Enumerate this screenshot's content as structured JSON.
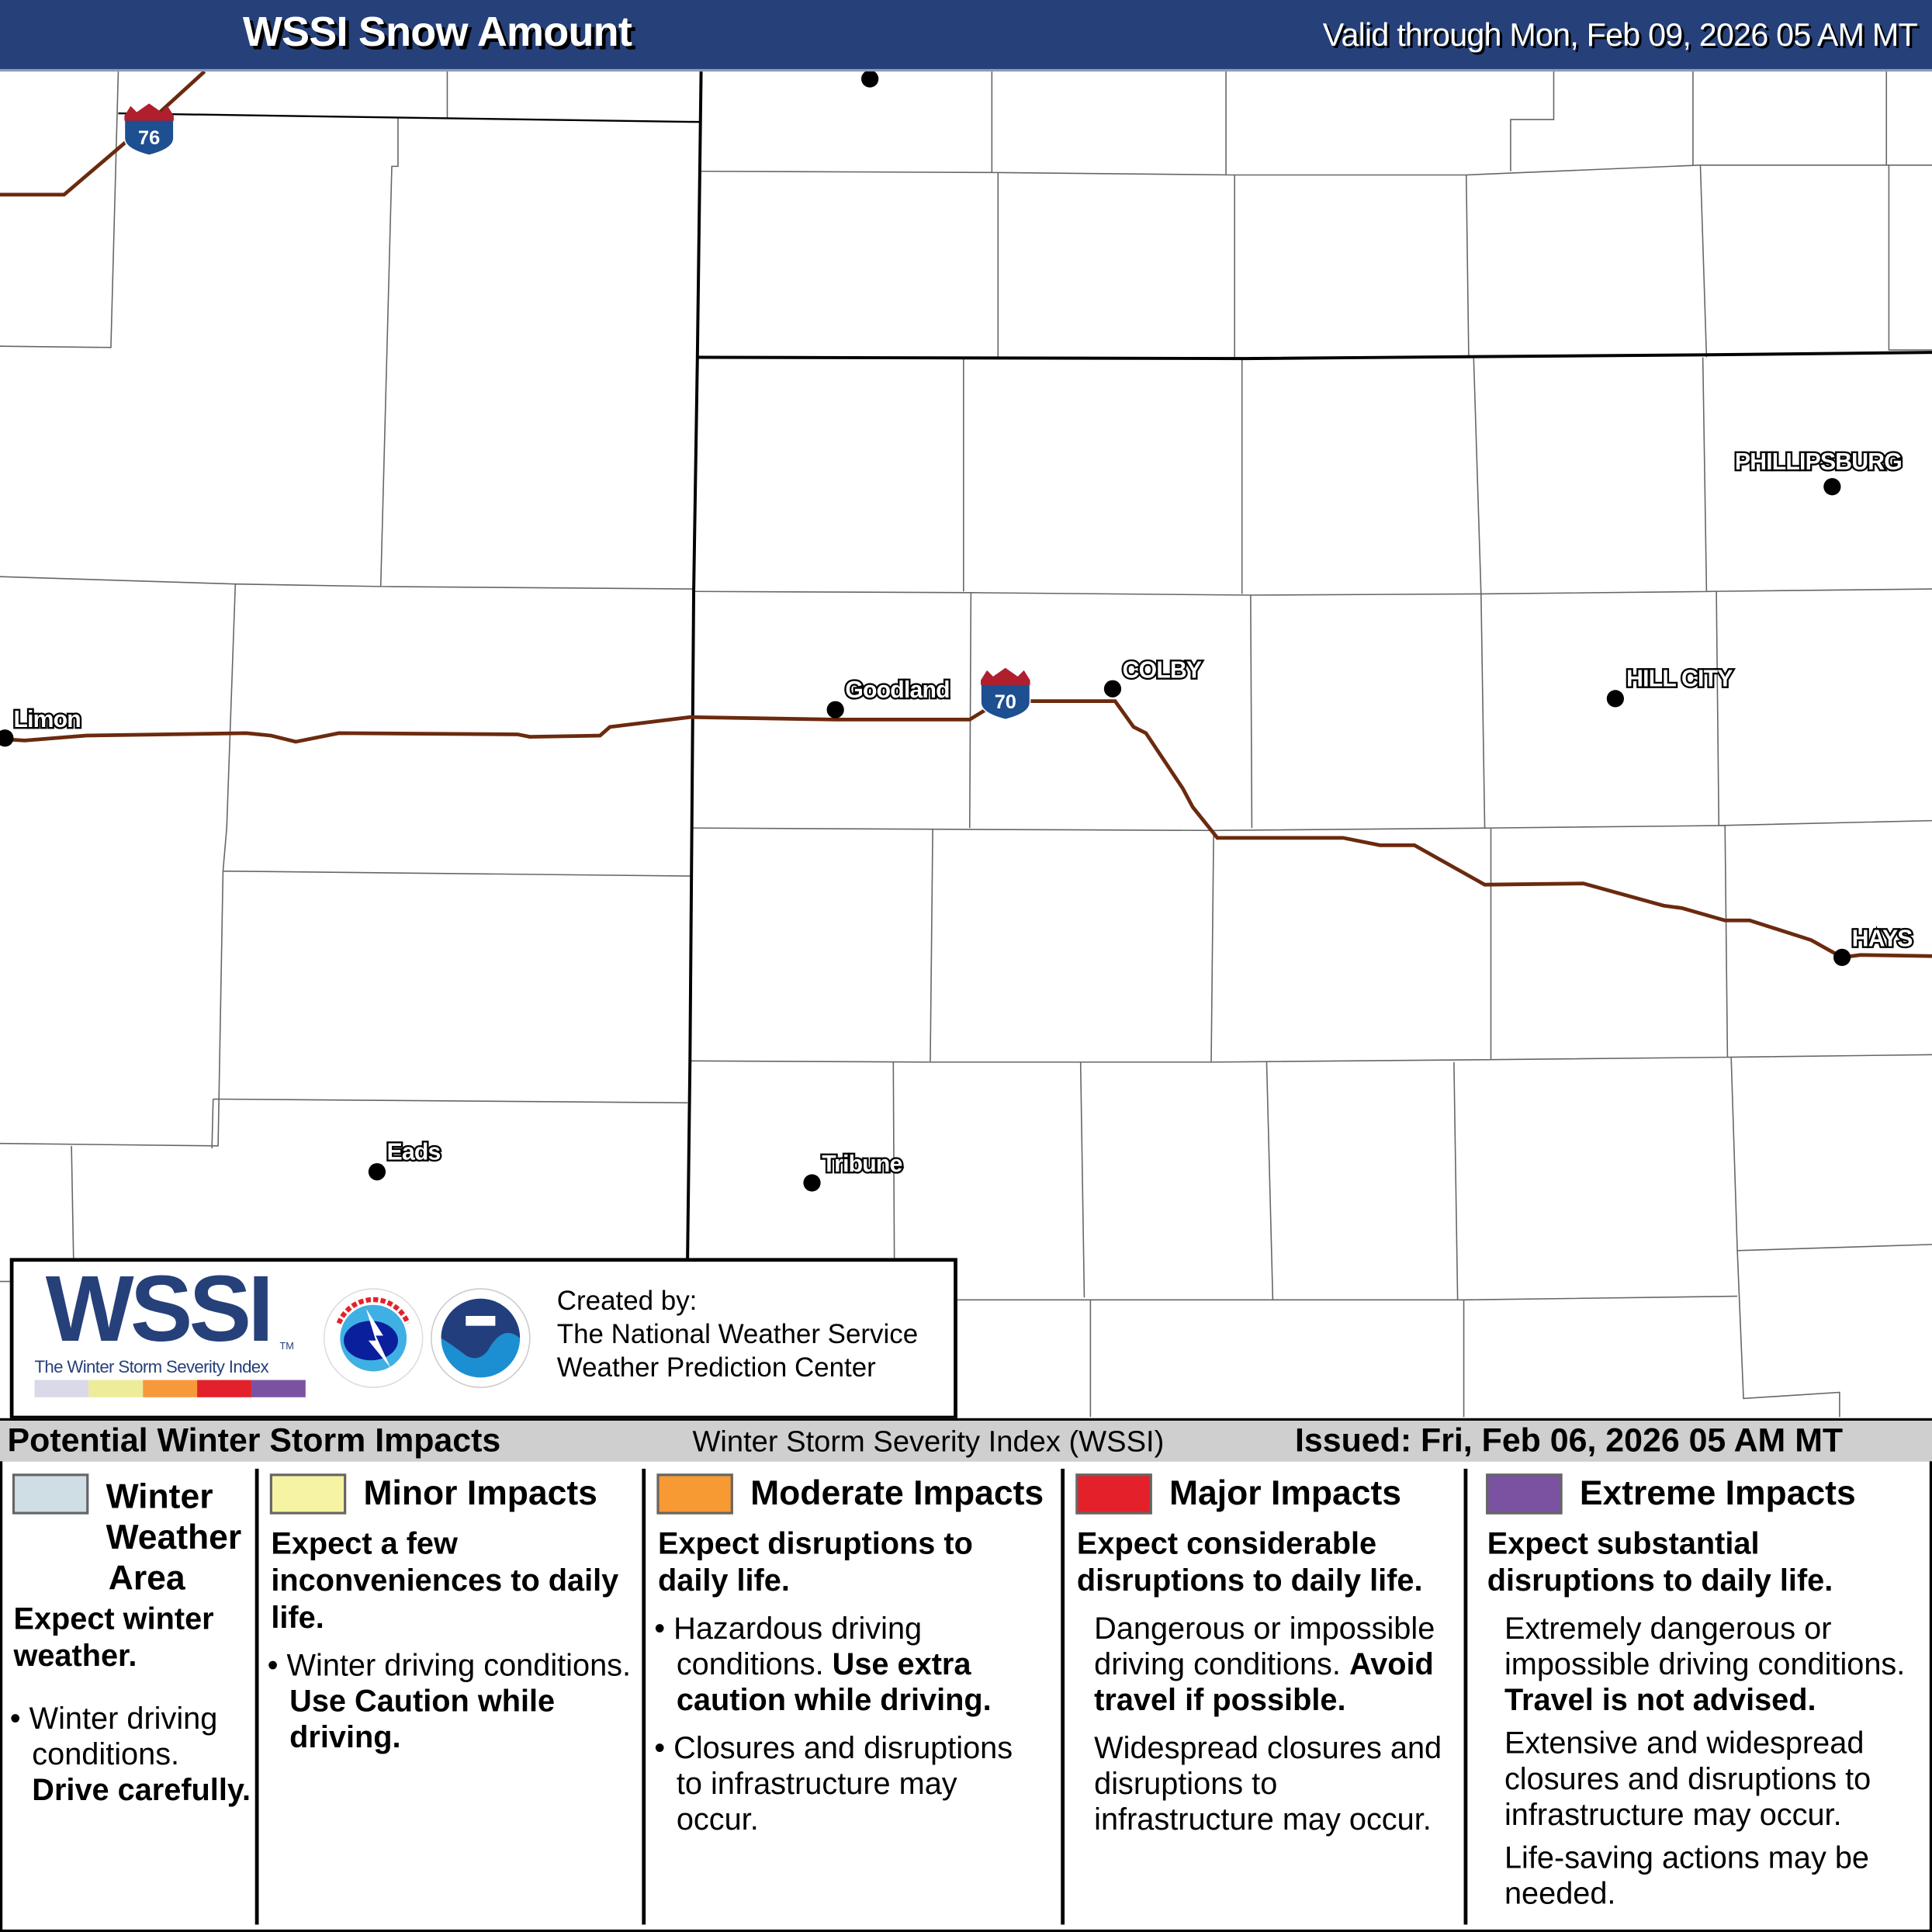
{
  "header": {
    "title": "WSSI Snow Amount",
    "valid": "Valid through Mon, Feb 09, 2026 05 AM MT",
    "background": "#26407a"
  },
  "map": {
    "cities": [
      {
        "name": "Limon"
      },
      {
        "name": "Goodland"
      },
      {
        "name": "COLBY"
      },
      {
        "name": "PHILLIPSBURG"
      },
      {
        "name": "HILL CITY"
      },
      {
        "name": "HAYS"
      },
      {
        "name": "Eads"
      },
      {
        "name": "Tribune"
      }
    ],
    "highways": [
      {
        "shield": "interstate-shield-icon",
        "number": "76"
      },
      {
        "shield": "interstate-shield-icon",
        "number": "70"
      }
    ],
    "road_color": "#6b2a0e"
  },
  "logo": {
    "wssi": "WSSI",
    "tm": "TM",
    "subtitle": "The Winter Storm Severity Index",
    "bar_colors": [
      "#d9d9e8",
      "#ecec9a",
      "#f7993a",
      "#e3212a",
      "#7b52a1"
    ],
    "created_by": "Created by:",
    "org1": "The National Weather Service",
    "org2": "Weather Prediction Center"
  },
  "legend": {
    "title": "Potential Winter Storm Impacts",
    "index_name": "Winter Storm Severity Index (WSSI)",
    "issued": "Issued: Fri, Feb 06, 2026 05 AM MT",
    "categories": [
      {
        "color": "#cfdde5",
        "label_lines": [
          "Winter",
          "Weather",
          "Area"
        ],
        "expect": "Expect winter weather.",
        "detail_a": "Winter driving conditions.",
        "detail_b": "Drive carefully."
      },
      {
        "color": "#f6f4a2",
        "label": "Minor Impacts",
        "expect": "Expect a few inconveniences to daily life.",
        "detail_a": "Winter driving conditions.",
        "detail_b": "Use Caution while driving."
      },
      {
        "color": "#f79a33",
        "label": "Moderate Impacts",
        "expect": "Expect disruptions to daily life.",
        "detail_a": "Hazardous driving conditions.",
        "detail_b": "Use extra caution while driving.",
        "detail_c": "Closures and disruptions to infrastructure may occur."
      },
      {
        "color": "#e4212a",
        "label": "Major Impacts",
        "expect": "Expect considerable disruptions to daily life.",
        "detail_a": "Dangerous or impossible driving conditions.",
        "detail_b": "Avoid travel if possible.",
        "detail_c": "Widespread closures and disruptions to infrastructure may occur."
      },
      {
        "color": "#7a52a1",
        "label": "Extreme Impacts",
        "expect": "Expect substantial disruptions to daily life.",
        "detail_a": "Extremely dangerous or impossible driving conditions.",
        "detail_b": "Travel is not advised.",
        "detail_c": "Extensive and widespread closures and disruptions to infrastructure may occur.",
        "detail_d": "Life-saving actions may be needed."
      }
    ]
  }
}
